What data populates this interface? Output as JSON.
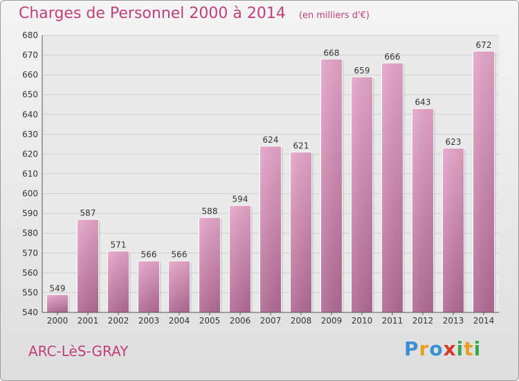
{
  "chart_data": {
    "type": "bar",
    "title": "Charges de Personnel 2000 à 2014",
    "unit_note": "(en milliers d'€)",
    "categories": [
      "2000",
      "2001",
      "2002",
      "2003",
      "2004",
      "2005",
      "2006",
      "2007",
      "2008",
      "2009",
      "2010",
      "2011",
      "2012",
      "2013",
      "2014"
    ],
    "values": [
      549,
      587,
      571,
      566,
      566,
      588,
      594,
      624,
      621,
      668,
      659,
      666,
      643,
      623,
      672
    ],
    "ylim": [
      540,
      680
    ],
    "yticks": [
      "540",
      "550",
      "560",
      "570",
      "580",
      "590",
      "600",
      "610",
      "620",
      "630",
      "640",
      "650",
      "660",
      "670",
      "680"
    ],
    "grid": true,
    "legend": "none",
    "bar_color": "#d98bb3"
  },
  "footer": {
    "commune": "ARC-LèS-GRAY",
    "brand_letters": [
      {
        "ch": "P",
        "color": "#3a8fd6"
      },
      {
        "ch": "r",
        "color": "#e8a020"
      },
      {
        "ch": "o",
        "color": "#3a8fd6"
      },
      {
        "ch": "x",
        "color": "#d23a2a"
      },
      {
        "ch": "i",
        "color": "#3aa84a"
      },
      {
        "ch": "t",
        "color": "#e8a020"
      },
      {
        "ch": "i",
        "color": "#3aa84a"
      }
    ]
  }
}
